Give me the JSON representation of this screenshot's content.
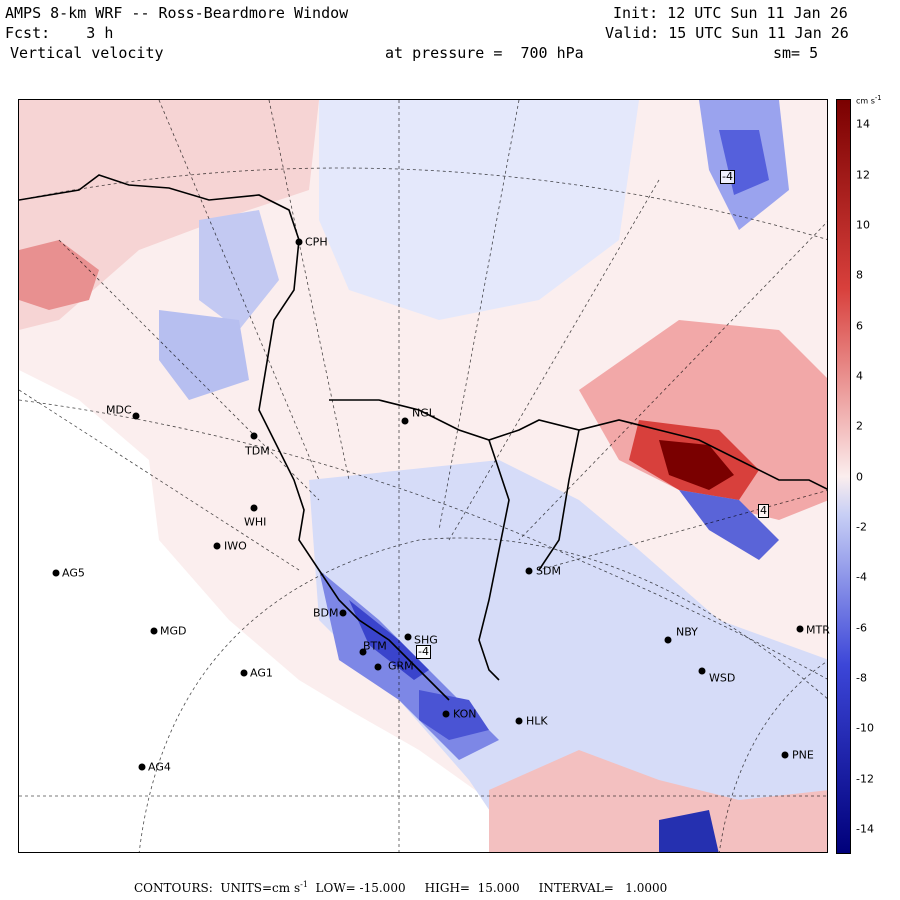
{
  "header": {
    "title": "AMPS 8-km WRF -- Ross-Beardmore Window",
    "init": "Init: 12 UTC Sun 11 Jan 26",
    "forecast": "Fcst:    3 h",
    "valid": "Valid: 15 UTC Sun 11 Jan 26",
    "field": "Vertical velocity",
    "pressure": "at pressure =  700 hPa",
    "smoothing": "sm= 5"
  },
  "stations": [
    {
      "code": "CPH"
    },
    {
      "code": "NGL"
    },
    {
      "code": "MDC"
    },
    {
      "code": "TDM"
    },
    {
      "code": "WHI"
    },
    {
      "code": "IWO"
    },
    {
      "code": "AG5"
    },
    {
      "code": "SDM"
    },
    {
      "code": "BDM"
    },
    {
      "code": "MGD"
    },
    {
      "code": "BTM"
    },
    {
      "code": "SHG"
    },
    {
      "code": "GRM"
    },
    {
      "code": "AG1"
    },
    {
      "code": "NBY"
    },
    {
      "code": "MTR"
    },
    {
      "code": "WSD"
    },
    {
      "code": "KON"
    },
    {
      "code": "HLK"
    },
    {
      "code": "AG4"
    },
    {
      "code": "PNE"
    }
  ],
  "contour_labels": [
    "-4",
    "-4",
    "4"
  ],
  "colorbar": {
    "units": "cm s-1",
    "ticks": [
      "14",
      "12",
      "10",
      "8",
      "6",
      "4",
      "2",
      "0",
      "-2",
      "-4",
      "-6",
      "-8",
      "-10",
      "-12",
      "-14"
    ]
  },
  "footer": "CONTOURS:  UNITS=cm s-1  LOW= -15.000     HIGH=  15.000     INTERVAL=   1.0000",
  "colors": {
    "positive_dark": "#7a0000",
    "positive": "#d8403c",
    "positive_light": "#f5c8c8",
    "neutral": "#fbeeee",
    "negative_light": "#c8cff5",
    "negative": "#3c46d8",
    "negative_dark": "#00007a"
  }
}
